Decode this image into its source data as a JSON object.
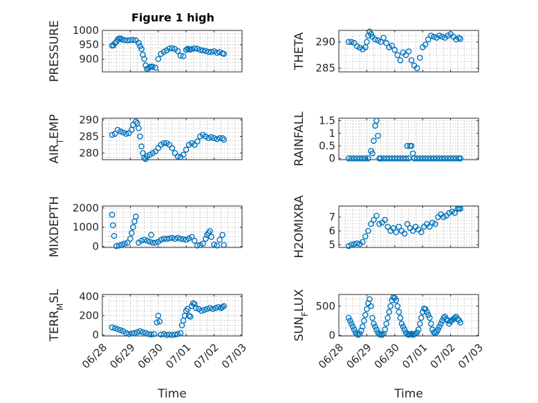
{
  "figure_title": "Figure 1 high",
  "time_ticks": [
    "06/28",
    "06/29",
    "06/30",
    "07/01",
    "07/02",
    "07/03"
  ],
  "series_color": "#0072BD",
  "chart_data": [
    {
      "id": "pressure",
      "type": "scatter",
      "ylabel": "PRESSURE",
      "ylabel_sub": "",
      "ylim": [
        855,
        1000
      ],
      "yticks": [
        900,
        950,
        1000
      ],
      "ytick_labels": [
        "900",
        "950",
        "1000"
      ],
      "xlim": [
        0,
        5
      ],
      "grid": true,
      "xlabel": "",
      "x": [
        0.35,
        0.4,
        0.45,
        0.5,
        0.55,
        0.6,
        0.65,
        0.7,
        0.8,
        0.9,
        1.0,
        1.1,
        1.2,
        1.3,
        1.35,
        1.4,
        1.45,
        1.5,
        1.55,
        1.6,
        1.65,
        1.7,
        1.75,
        1.8,
        1.9,
        2.0,
        2.1,
        2.2,
        2.3,
        2.4,
        2.5,
        2.6,
        2.7,
        2.8,
        2.9,
        3.0,
        3.05,
        3.1,
        3.15,
        3.2,
        3.3,
        3.4,
        3.5,
        3.6,
        3.7,
        3.8,
        3.9,
        4.0,
        4.1,
        4.2,
        4.3,
        4.35
      ],
      "y": [
        947,
        948,
        955,
        960,
        968,
        972,
        972,
        968,
        966,
        965,
        966,
        967,
        965,
        956,
        945,
        935,
        915,
        900,
        878,
        865,
        868,
        872,
        874,
        873,
        870,
        900,
        918,
        925,
        930,
        937,
        938,
        935,
        928,
        912,
        910,
        932,
        936,
        934,
        933,
        935,
        937,
        936,
        932,
        930,
        928,
        925,
        925,
        927,
        922,
        924,
        920,
        918
      ]
    },
    {
      "id": "theta",
      "type": "scatter",
      "ylabel": "THETA",
      "ylabel_sub": "",
      "ylim": [
        284.3,
        292.2
      ],
      "yticks": [
        285,
        290
      ],
      "ytick_labels": [
        "285",
        "290"
      ],
      "xlim": [
        0,
        5
      ],
      "grid": true,
      "xlabel": "",
      "x": [
        0.35,
        0.45,
        0.55,
        0.65,
        0.75,
        0.85,
        0.95,
        1.0,
        1.05,
        1.1,
        1.15,
        1.2,
        1.3,
        1.4,
        1.5,
        1.6,
        1.7,
        1.8,
        1.9,
        2.0,
        2.1,
        2.2,
        2.3,
        2.4,
        2.5,
        2.6,
        2.7,
        2.8,
        2.9,
        3.0,
        3.1,
        3.2,
        3.3,
        3.4,
        3.5,
        3.6,
        3.7,
        3.8,
        3.9,
        4.0,
        4.1,
        4.2,
        4.3,
        4.35
      ],
      "y": [
        290,
        290,
        289.8,
        289.2,
        288.9,
        288.6,
        289,
        290,
        291.2,
        292,
        291.5,
        291,
        290.5,
        290.3,
        290,
        290.8,
        289.8,
        289,
        289.3,
        288.5,
        287.5,
        286.5,
        288,
        287.5,
        288.2,
        286.5,
        285.5,
        285,
        287,
        289,
        289.5,
        290.5,
        291.2,
        291,
        290.8,
        291.2,
        291,
        290.8,
        291.2,
        291.5,
        291,
        290.5,
        290.8,
        290.6
      ]
    },
    {
      "id": "air_temp",
      "type": "scatter",
      "ylabel": "AIR",
      "ylabel_sub": "T",
      "ylabel_suffix": "EMP",
      "ylim": [
        278,
        290.5
      ],
      "yticks": [
        280,
        285,
        290
      ],
      "ytick_labels": [
        "280",
        "285",
        "290"
      ],
      "xlim": [
        0,
        5
      ],
      "grid": true,
      "xlabel": "",
      "x": [
        0.35,
        0.45,
        0.55,
        0.65,
        0.75,
        0.85,
        0.95,
        1.05,
        1.1,
        1.2,
        1.25,
        1.3,
        1.35,
        1.4,
        1.45,
        1.5,
        1.55,
        1.6,
        1.7,
        1.8,
        1.9,
        2.0,
        2.1,
        2.2,
        2.3,
        2.4,
        2.5,
        2.6,
        2.7,
        2.8,
        2.9,
        3.0,
        3.1,
        3.2,
        3.3,
        3.4,
        3.5,
        3.6,
        3.7,
        3.8,
        3.9,
        4.0,
        4.1,
        4.2,
        4.3,
        4.35
      ],
      "y": [
        285.5,
        285.8,
        287,
        286.5,
        286.2,
        285.8,
        286,
        287,
        288.5,
        289.5,
        289,
        287.5,
        285,
        282,
        280,
        278.5,
        278.2,
        279,
        279.5,
        280,
        280.5,
        281.5,
        282.5,
        283,
        283,
        282.5,
        281.5,
        280,
        279,
        278.8,
        279.5,
        281,
        282.5,
        283,
        282.5,
        283.5,
        285,
        285.5,
        285,
        284.5,
        284.8,
        284.5,
        284.2,
        284.5,
        284.5,
        284
      ]
    },
    {
      "id": "rainfall",
      "type": "scatter",
      "ylabel": "RAINFALL",
      "ylabel_sub": "",
      "ylim": [
        -0.05,
        1.6
      ],
      "yticks": [
        0,
        0.5,
        1,
        1.5
      ],
      "ytick_labels": [
        "0",
        "0.5",
        "1",
        "1.5"
      ],
      "xlim": [
        0,
        5
      ],
      "grid": true,
      "xlabel": "",
      "x": [
        0.35,
        0.45,
        0.55,
        0.65,
        0.75,
        0.85,
        0.95,
        1.05,
        1.15,
        1.2,
        1.25,
        1.3,
        1.35,
        1.4,
        1.45,
        1.5,
        1.6,
        1.7,
        1.8,
        1.9,
        2.0,
        2.1,
        2.2,
        2.3,
        2.4,
        2.45,
        2.5,
        2.55,
        2.6,
        2.65,
        2.7,
        2.8,
        2.9,
        3.0,
        3.1,
        3.2,
        3.3,
        3.4,
        3.5,
        3.6,
        3.7,
        3.8,
        3.9,
        4.0,
        4.1,
        4.2,
        4.3,
        4.35
      ],
      "y": [
        0,
        0,
        0,
        0,
        0,
        0,
        0,
        0,
        0.3,
        0.2,
        0.7,
        1.3,
        1.5,
        0.9,
        0,
        0,
        0,
        0,
        0,
        0,
        0,
        0,
        0,
        0,
        0,
        0.5,
        0,
        0.5,
        0.5,
        0.2,
        0,
        0,
        0,
        0,
        0,
        0,
        0,
        0,
        0,
        0,
        0,
        0,
        0,
        0,
        0,
        0,
        0,
        0
      ]
    },
    {
      "id": "mixdepth",
      "type": "scatter",
      "ylabel": "MIXDEPTH",
      "ylabel_sub": "",
      "ylim": [
        -50,
        2100
      ],
      "yticks": [
        0,
        1000,
        2000
      ],
      "ytick_labels": [
        "0",
        "1000",
        "2000"
      ],
      "xlim": [
        0,
        5
      ],
      "grid": true,
      "xlabel": "",
      "x": [
        0.35,
        0.38,
        0.42,
        0.5,
        0.6,
        0.7,
        0.8,
        0.9,
        1.0,
        1.05,
        1.1,
        1.15,
        1.2,
        1.3,
        1.4,
        1.5,
        1.6,
        1.7,
        1.75,
        1.8,
        1.9,
        2.0,
        2.1,
        2.2,
        2.3,
        2.4,
        2.5,
        2.6,
        2.7,
        2.8,
        2.9,
        3.0,
        3.1,
        3.2,
        3.3,
        3.4,
        3.5,
        3.6,
        3.7,
        3.75,
        3.8,
        3.85,
        3.9,
        4.0,
        4.1,
        4.2,
        4.3,
        4.35
      ],
      "y": [
        1650,
        1100,
        550,
        20,
        50,
        100,
        150,
        200,
        400,
        700,
        1000,
        1300,
        1550,
        200,
        300,
        350,
        300,
        250,
        600,
        200,
        200,
        250,
        350,
        400,
        400,
        420,
        450,
        400,
        450,
        400,
        380,
        350,
        420,
        500,
        300,
        50,
        80,
        150,
        400,
        600,
        700,
        800,
        500,
        100,
        50,
        350,
        600,
        80
      ]
    },
    {
      "id": "h2omixra",
      "type": "scatter",
      "ylabel": "H2OMIXRA",
      "ylabel_sub": "",
      "ylim": [
        4.8,
        7.8
      ],
      "yticks": [
        5,
        6,
        7
      ],
      "ytick_labels": [
        "5",
        "6",
        "7"
      ],
      "xlim": [
        0,
        5
      ],
      "grid": true,
      "xlabel": "",
      "x": [
        0.35,
        0.45,
        0.55,
        0.65,
        0.75,
        0.85,
        0.95,
        1.05,
        1.15,
        1.25,
        1.35,
        1.45,
        1.55,
        1.65,
        1.75,
        1.85,
        1.95,
        2.05,
        2.15,
        2.25,
        2.35,
        2.45,
        2.55,
        2.65,
        2.75,
        2.85,
        2.95,
        3.05,
        3.15,
        3.25,
        3.35,
        3.45,
        3.55,
        3.65,
        3.75,
        3.85,
        3.95,
        4.05,
        4.15,
        4.25,
        4.3,
        4.35
      ],
      "y": [
        4.9,
        5.0,
        5.05,
        5.1,
        5.05,
        5.2,
        5.6,
        6.0,
        6.5,
        6.8,
        7.1,
        6.5,
        6.6,
        6.8,
        6.3,
        6.0,
        6.2,
        5.9,
        6.3,
        6.0,
        5.8,
        6.5,
        6.2,
        6.0,
        6.3,
        6.1,
        5.9,
        6.3,
        6.5,
        6.3,
        6.6,
        6.5,
        7.0,
        7.2,
        7.0,
        7.1,
        7.3,
        7.4,
        7.3,
        7.6,
        7.6,
        7.6
      ]
    },
    {
      "id": "terr_msl",
      "type": "scatter",
      "ylabel": "TERR",
      "ylabel_sub": "M",
      "ylabel_suffix": "SL",
      "ylim": [
        -10,
        420
      ],
      "yticks": [
        0,
        200,
        400
      ],
      "ytick_labels": [
        "0",
        "200",
        "400"
      ],
      "xlim": [
        0,
        5
      ],
      "grid": true,
      "xlabel": "Time",
      "x": [
        0.35,
        0.45,
        0.55,
        0.65,
        0.75,
        0.85,
        0.95,
        1.05,
        1.15,
        1.25,
        1.35,
        1.45,
        1.55,
        1.65,
        1.75,
        1.85,
        1.95,
        2.0,
        2.05,
        2.1,
        2.2,
        2.3,
        2.4,
        2.5,
        2.6,
        2.7,
        2.8,
        2.85,
        2.9,
        2.95,
        3.0,
        3.05,
        3.1,
        3.15,
        3.2,
        3.25,
        3.3,
        3.35,
        3.45,
        3.55,
        3.65,
        3.75,
        3.85,
        3.95,
        4.05,
        4.15,
        4.25,
        4.3,
        4.35
      ],
      "y": [
        80,
        70,
        60,
        50,
        40,
        20,
        10,
        15,
        20,
        30,
        40,
        30,
        20,
        10,
        5,
        10,
        130,
        200,
        140,
        5,
        10,
        0,
        5,
        0,
        5,
        10,
        20,
        100,
        150,
        200,
        250,
        270,
        200,
        190,
        300,
        330,
        320,
        280,
        270,
        250,
        260,
        270,
        280,
        270,
        280,
        290,
        280,
        290,
        300
      ]
    },
    {
      "id": "sun_flux",
      "type": "scatter",
      "ylabel": "SUN",
      "ylabel_sub": "F",
      "ylabel_suffix": "LUX",
      "ylim": [
        -10,
        700
      ],
      "yticks": [
        0,
        500
      ],
      "ytick_labels": [
        "0",
        "500"
      ],
      "xlim": [
        0,
        5
      ],
      "grid": true,
      "xlabel": "Time",
      "x": [
        0.35,
        0.4,
        0.45,
        0.5,
        0.55,
        0.6,
        0.65,
        0.7,
        0.75,
        0.8,
        0.85,
        0.9,
        0.95,
        1.0,
        1.05,
        1.1,
        1.15,
        1.2,
        1.25,
        1.3,
        1.35,
        1.4,
        1.45,
        1.5,
        1.55,
        1.6,
        1.65,
        1.7,
        1.75,
        1.8,
        1.85,
        1.9,
        1.95,
        2.0,
        2.05,
        2.1,
        2.15,
        2.2,
        2.25,
        2.3,
        2.35,
        2.4,
        2.45,
        2.5,
        2.55,
        2.6,
        2.65,
        2.7,
        2.75,
        2.8,
        2.85,
        2.9,
        2.95,
        3.0,
        3.05,
        3.1,
        3.15,
        3.2,
        3.25,
        3.3,
        3.35,
        3.4,
        3.45,
        3.5,
        3.55,
        3.6,
        3.65,
        3.7,
        3.75,
        3.8,
        3.85,
        3.9,
        3.95,
        4.0,
        4.05,
        4.1,
        4.15,
        4.2,
        4.25,
        4.3,
        4.35
      ],
      "y": [
        300,
        250,
        200,
        150,
        100,
        50,
        20,
        10,
        30,
        80,
        150,
        250,
        350,
        450,
        550,
        620,
        500,
        300,
        200,
        150,
        100,
        50,
        20,
        10,
        10,
        30,
        100,
        200,
        300,
        400,
        500,
        600,
        650,
        640,
        600,
        500,
        400,
        300,
        200,
        150,
        100,
        50,
        20,
        10,
        20,
        30,
        10,
        20,
        30,
        50,
        100,
        200,
        300,
        400,
        460,
        450,
        400,
        350,
        300,
        200,
        100,
        50,
        40,
        60,
        100,
        150,
        200,
        250,
        300,
        320,
        280,
        250,
        200,
        240,
        260,
        280,
        300,
        320,
        280,
        260,
        220
      ]
    }
  ]
}
